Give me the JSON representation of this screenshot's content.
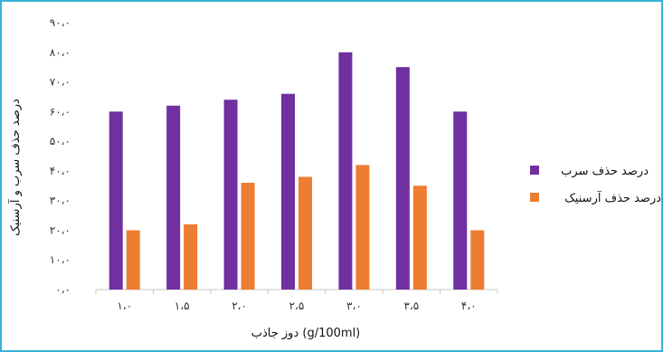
{
  "chart_data": {
    "type": "bar",
    "categories": [
      "۱،۰",
      "۱،۵",
      "۲،۰",
      "۲،۵",
      "۳،۰",
      "۳،۵",
      "۴،۰"
    ],
    "series": [
      {
        "name": "درصد حذف سرب",
        "values": [
          60,
          62,
          64,
          66,
          80,
          75,
          60
        ],
        "color": "#7030a0"
      },
      {
        "name": "درصد حذف آرسنیک",
        "values": [
          20,
          22,
          36,
          38,
          42,
          35,
          20
        ],
        "color": "#ed7d31"
      }
    ],
    "yticks": [
      {
        "value": 0,
        "label": "۰،۰"
      },
      {
        "value": 10,
        "label": "۱۰،۰"
      },
      {
        "value": 20,
        "label": "۲۰،۰"
      },
      {
        "value": 30,
        "label": "۳۰،۰"
      },
      {
        "value": 40,
        "label": "۴۰،۰"
      },
      {
        "value": 50,
        "label": "۵۰،۰"
      },
      {
        "value": 60,
        "label": "۶۰،۰"
      },
      {
        "value": 70,
        "label": "۷۰،۰"
      },
      {
        "value": 80,
        "label": "۸۰،۰"
      },
      {
        "value": 90,
        "label": "۹۰،۰"
      }
    ],
    "ylim": [
      0,
      90
    ],
    "xlabel": "دوز جاذب  (g/100ml)",
    "ylabel": "درصد حذف سرب و آرسنیک",
    "legend_position": "right",
    "grid": false,
    "border_color": "#37b3d6"
  }
}
